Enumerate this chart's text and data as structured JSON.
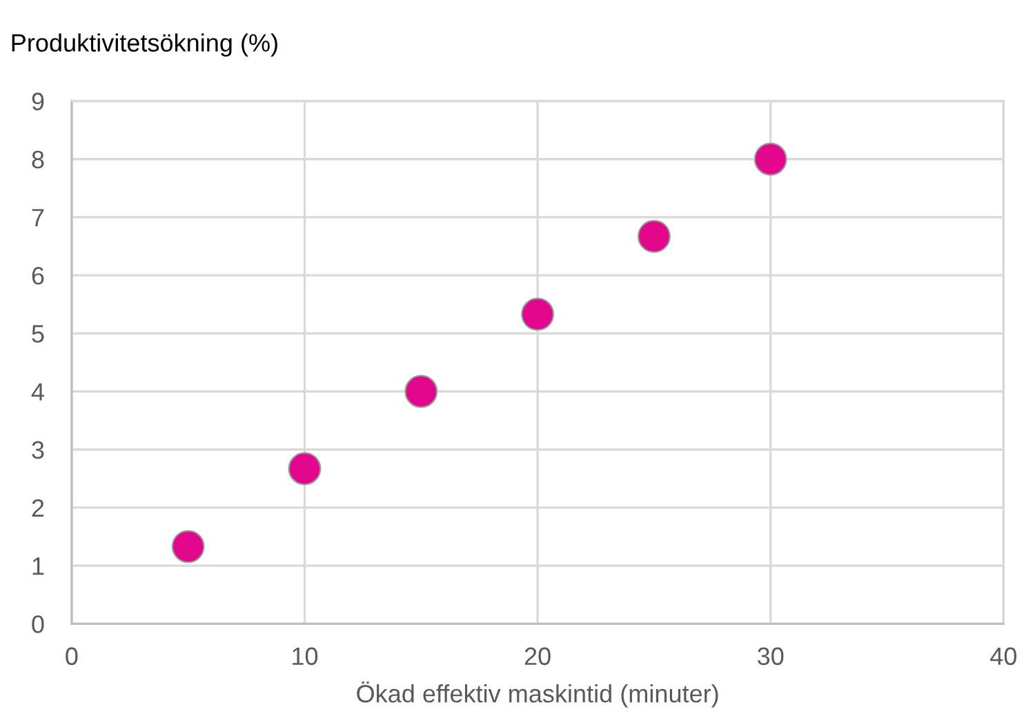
{
  "chart_data": {
    "type": "scatter",
    "ylabel": "Produktivitetsökning (%)",
    "xlabel": "Ökad effektiv maskintid (minuter)",
    "series": [
      {
        "color": "#e2068c",
        "x": [
          5,
          10,
          15,
          20,
          25,
          30
        ],
        "values": [
          1.33,
          2.67,
          4,
          5.33,
          6.67,
          8
        ]
      }
    ],
    "marker": "circle",
    "xlim": [
      0,
      40
    ],
    "xticks": [
      0,
      10,
      20,
      30,
      40
    ],
    "ylim": [
      0,
      9
    ],
    "yticks": [
      0,
      1,
      2,
      3,
      4,
      5,
      6,
      7,
      8,
      9
    ],
    "grid": true
  }
}
